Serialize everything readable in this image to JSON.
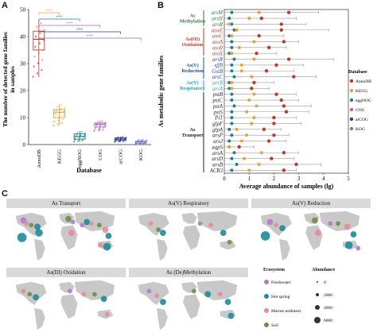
{
  "panels": {
    "a": "A",
    "b": "B",
    "c": "C"
  },
  "panel_a": {
    "ylabel_line1": "The number of detected gene families",
    "ylabel_line2": "in samples",
    "xlabel": "Database",
    "sig_labels": [
      "***",
      "***",
      "***",
      "***",
      "***"
    ],
    "chart_data": {
      "type": "box",
      "categories": [
        "AnnoDB",
        "KEGG",
        "eggNOG",
        "COG",
        "arCOG",
        "KOG"
      ],
      "colors": [
        "#c0392b",
        "#e6a23c",
        "#1f7f8c",
        "#a66ab8",
        "#2b3a8f",
        "#6b7ac9"
      ],
      "ylim": [
        0,
        50
      ],
      "yticks": [
        0,
        10,
        20,
        30,
        40,
        50
      ],
      "medians": [
        39,
        12,
        3,
        7.5,
        2,
        1
      ],
      "q1": [
        35,
        10,
        2,
        6.5,
        1.5,
        0.5
      ],
      "q3": [
        42,
        13,
        4,
        8,
        2.5,
        1.2
      ],
      "whisker_low": [
        25,
        7,
        1,
        5,
        1,
        0
      ],
      "whisker_high": [
        46,
        15,
        5,
        9,
        3,
        2
      ]
    }
  },
  "panel_b": {
    "ylabel": "As metabolic gene families",
    "xlabel": "Average abundance of samples (lg)",
    "groups": [
      {
        "label": "As\nMethylation",
        "color": "#2e7d32"
      },
      {
        "label": "As(III)\nOxidation",
        "color": "#c0392b"
      },
      {
        "label": "As(V)\nReduction",
        "color": "#1f4fa3"
      },
      {
        "label": "As(V)\nRespiratory",
        "color": "#1aa5b8"
      },
      {
        "label": "As\nTransport",
        "color": "#222222"
      }
    ],
    "legend_title": "Database",
    "legend": [
      {
        "name": "AnnoDB",
        "color": "#c0392b"
      },
      {
        "name": "KEGG",
        "color": "#e6a23c"
      },
      {
        "name": "eggNOG",
        "color": "#1f7f8c"
      },
      {
        "name": "COG",
        "color": "#a66ab8"
      },
      {
        "name": "arCOG",
        "color": "#2b3a8f"
      },
      {
        "name": "KOG",
        "color": "#6b7ac9"
      }
    ],
    "chart_data": {
      "type": "scatter",
      "genes": [
        "arsM",
        "arsH",
        "arsR",
        "aoxE",
        "aioC",
        "aioA",
        "aioR",
        "aioX",
        "arsR",
        "sffB",
        "GstB",
        "arsC",
        "arrB",
        "arrA",
        "pstB",
        "pstC",
        "pstA",
        "pstS",
        "PiT",
        "glpF",
        "glpA",
        "arsP",
        "arsJ",
        "aqpS",
        "arsA",
        "arsD",
        "arsB",
        "ACR3"
      ],
      "gene_colors": [
        "#2e7d32",
        "#2e7d32",
        "#2e7d32",
        "#c0392b",
        "#c0392b",
        "#c0392b",
        "#c0392b",
        "#c0392b",
        "#1f4fa3",
        "#1f4fa3",
        "#1f4fa3",
        "#1f4fa3",
        "#1aa5b8",
        "#1aa5b8",
        "#222222",
        "#222222",
        "#222222",
        "#222222",
        "#222222",
        "#222222",
        "#222222",
        "#222222",
        "#222222",
        "#222222",
        "#222222",
        "#222222",
        "#222222",
        "#222222"
      ],
      "xlim": [
        0,
        5
      ],
      "xticks": [
        0,
        1,
        2,
        3,
        4,
        5
      ],
      "annodb": [
        2.6,
        1.5,
        2.3,
        2.3,
        1.4,
        2.4,
        1.8,
        1.3,
        2.6,
        2.1,
        1.7,
        2.8,
        1.2,
        1.1,
        2.1,
        2.3,
        2.4,
        2.5,
        2.0,
        2.0,
        1.6,
        2.0,
        1.8,
        0.6,
        2.4,
        1.9,
        2.9,
        2.4
      ],
      "kegg": [
        1.4,
        1.0,
        0.2,
        0.5,
        0.3,
        1.2,
        0.6,
        0.3,
        1.2,
        0.7,
        0.7,
        1.1,
        0.3,
        0.3,
        1.2,
        1.0,
        1.3,
        0.9,
        1.2,
        1.1,
        0.5,
        0.9,
        0.7,
        0.2,
        1.5,
        0.8,
        1.4,
        1.0
      ],
      "eggnog": [
        0.3,
        0.2,
        0.3,
        0.4,
        0.2,
        0.3,
        0.3,
        0.2,
        0.4,
        0.3,
        0.3,
        0.4,
        0.2,
        0.2,
        0.3,
        0.3,
        0.4,
        0.3,
        0.3,
        0.3,
        0.2,
        0.3,
        0.2,
        0.2,
        0.4,
        0.3,
        0.5,
        0.3
      ],
      "error_high": [
        3.8,
        2.9,
        3.3,
        4.2,
        2.4,
        3.0,
        2.5,
        2.1,
        4.4,
        3.2,
        2.8,
        3.7,
        2.0,
        1.8,
        2.9,
        3.0,
        3.5,
        3.4,
        2.9,
        3.1,
        2.3,
        2.6,
        2.5,
        1.2,
        3.0,
        2.8,
        3.9,
        2.9
      ]
    }
  },
  "panel_c": {
    "maps": [
      {
        "title": "As Transport"
      },
      {
        "title": "As(V) Respiratory"
      },
      {
        "title": "As(V) Reduction"
      },
      {
        "title": "As(III) Oxidation"
      },
      {
        "title": "As (De)Methylation"
      }
    ],
    "ecosystem_title": "Ecosystem",
    "ecosystems": [
      {
        "name": "Freshwater",
        "color": "#b07cc6"
      },
      {
        "name": "Hot spring",
        "color": "#1f8a99"
      },
      {
        "name": "Marine sediment",
        "color": "#e88a9a"
      },
      {
        "name": "Soil",
        "color": "#6c8f47"
      }
    ],
    "abundance_title": "Abundance",
    "abundance": [
      "0",
      "2000",
      "4000",
      "6000"
    ]
  }
}
